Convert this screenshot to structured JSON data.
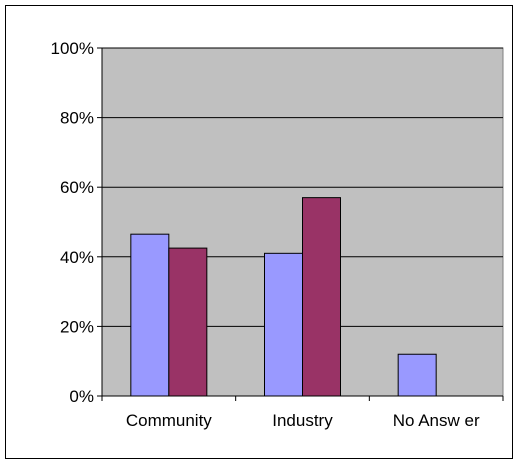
{
  "chart_data": {
    "type": "bar",
    "categories": [
      "Community",
      "Industry",
      "No Answ er"
    ],
    "series": [
      {
        "values": [
          46.5,
          41,
          12
        ],
        "color": "#9999ff"
      },
      {
        "values": [
          42.5,
          57,
          null
        ],
        "color": "#993366"
      }
    ],
    "y_ticks": [
      "0%",
      "20%",
      "40%",
      "60%",
      "80%",
      "100%"
    ],
    "ylim": [
      0,
      100
    ],
    "grid": true,
    "plot_background": "#c0c0c0",
    "legend": "none",
    "title": "",
    "xlabel": "",
    "ylabel": ""
  }
}
